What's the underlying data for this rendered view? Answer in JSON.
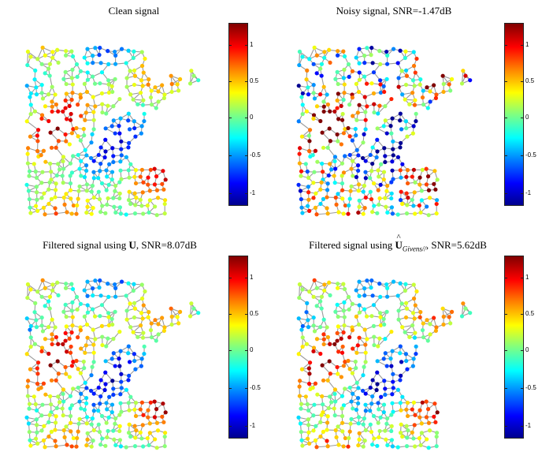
{
  "panels": [
    {
      "title_plain": "Clean signal",
      "seed": 11,
      "noise": 0.15
    },
    {
      "title_plain": "Noisy signal, SNR=-1.47dB",
      "seed": 23,
      "noise": 1.0
    },
    {
      "title_prefix": "Filtered signal using ",
      "title_bold": "U",
      "title_suffix": ", SNR=8.07dB",
      "seed": 37,
      "noise": 0.25
    },
    {
      "title_prefix": "Filtered signal using ",
      "title_bold": "U",
      "title_sub": "Givens//",
      "title_suffix": ", SNR=5.62dB",
      "seed": 51,
      "noise": 0.35
    }
  ],
  "colorbar": {
    "ticks": [
      "1",
      "0.5",
      "0",
      "-0.5",
      "-1"
    ]
  },
  "colors": {
    "edge": "#9a9a9a",
    "colormap": [
      "#00008f",
      "#0000ff",
      "#0080ff",
      "#00ffff",
      "#80ff80",
      "#ffff00",
      "#ff8000",
      "#ff0000",
      "#800000"
    ]
  }
}
